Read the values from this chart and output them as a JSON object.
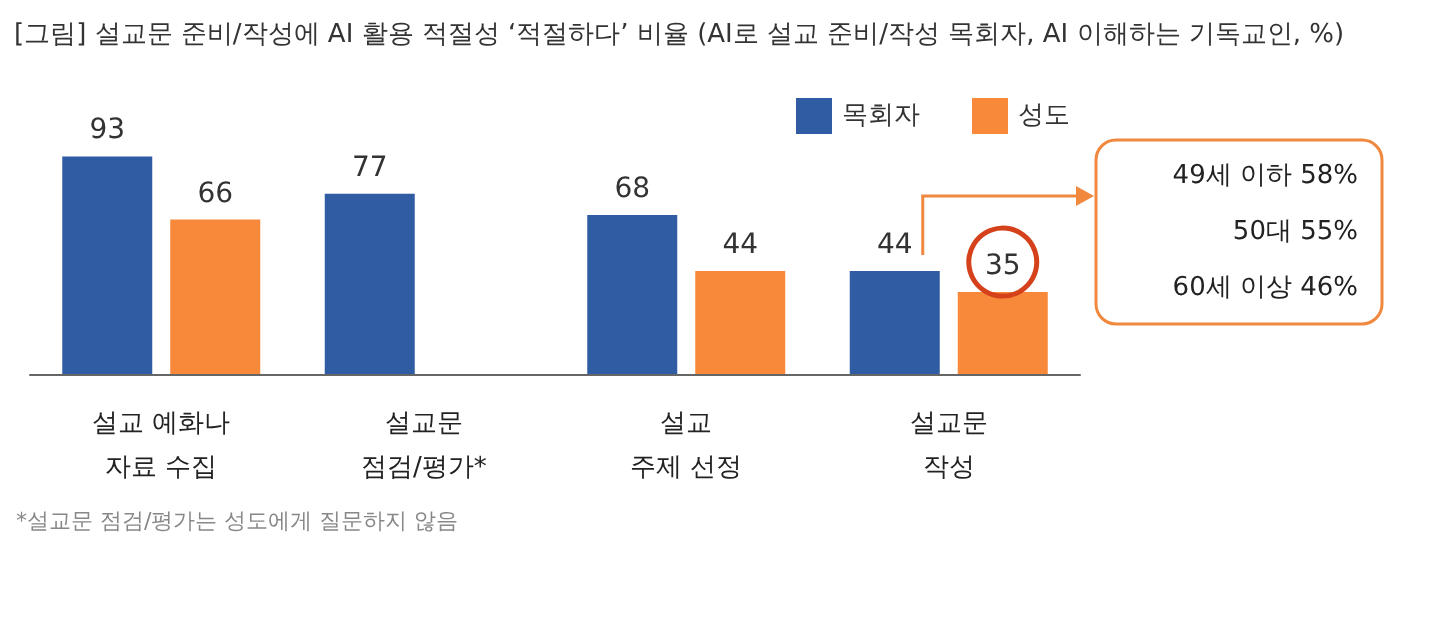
{
  "chart_data": {
    "type": "bar",
    "title": "[그림] 설교문 준비/작성에 AI 활용 적절성 ‘적절하다’ 비율 (AI로 설교 준비/작성 목회자, AI 이해하는 기독교인, %)",
    "categories": [
      "설교 예화나\n자료 수집",
      "설교문\n점검/평가*",
      "설교\n주제 선정",
      "설교문\n작성"
    ],
    "series": [
      {
        "name": "목회자",
        "color": "#2f5ca3",
        "values": [
          93,
          77,
          68,
          44
        ]
      },
      {
        "name": "성도",
        "color": "#f8893a",
        "values": [
          66,
          null,
          44,
          35
        ]
      }
    ],
    "data_labels": true,
    "legend": "top right",
    "annotations": [
      "49세 이하 58%",
      "50대 55%",
      "60세 이상 46%",
      "*설교문 점검/평가는 성도에게 질문하지 않음"
    ]
  }
}
